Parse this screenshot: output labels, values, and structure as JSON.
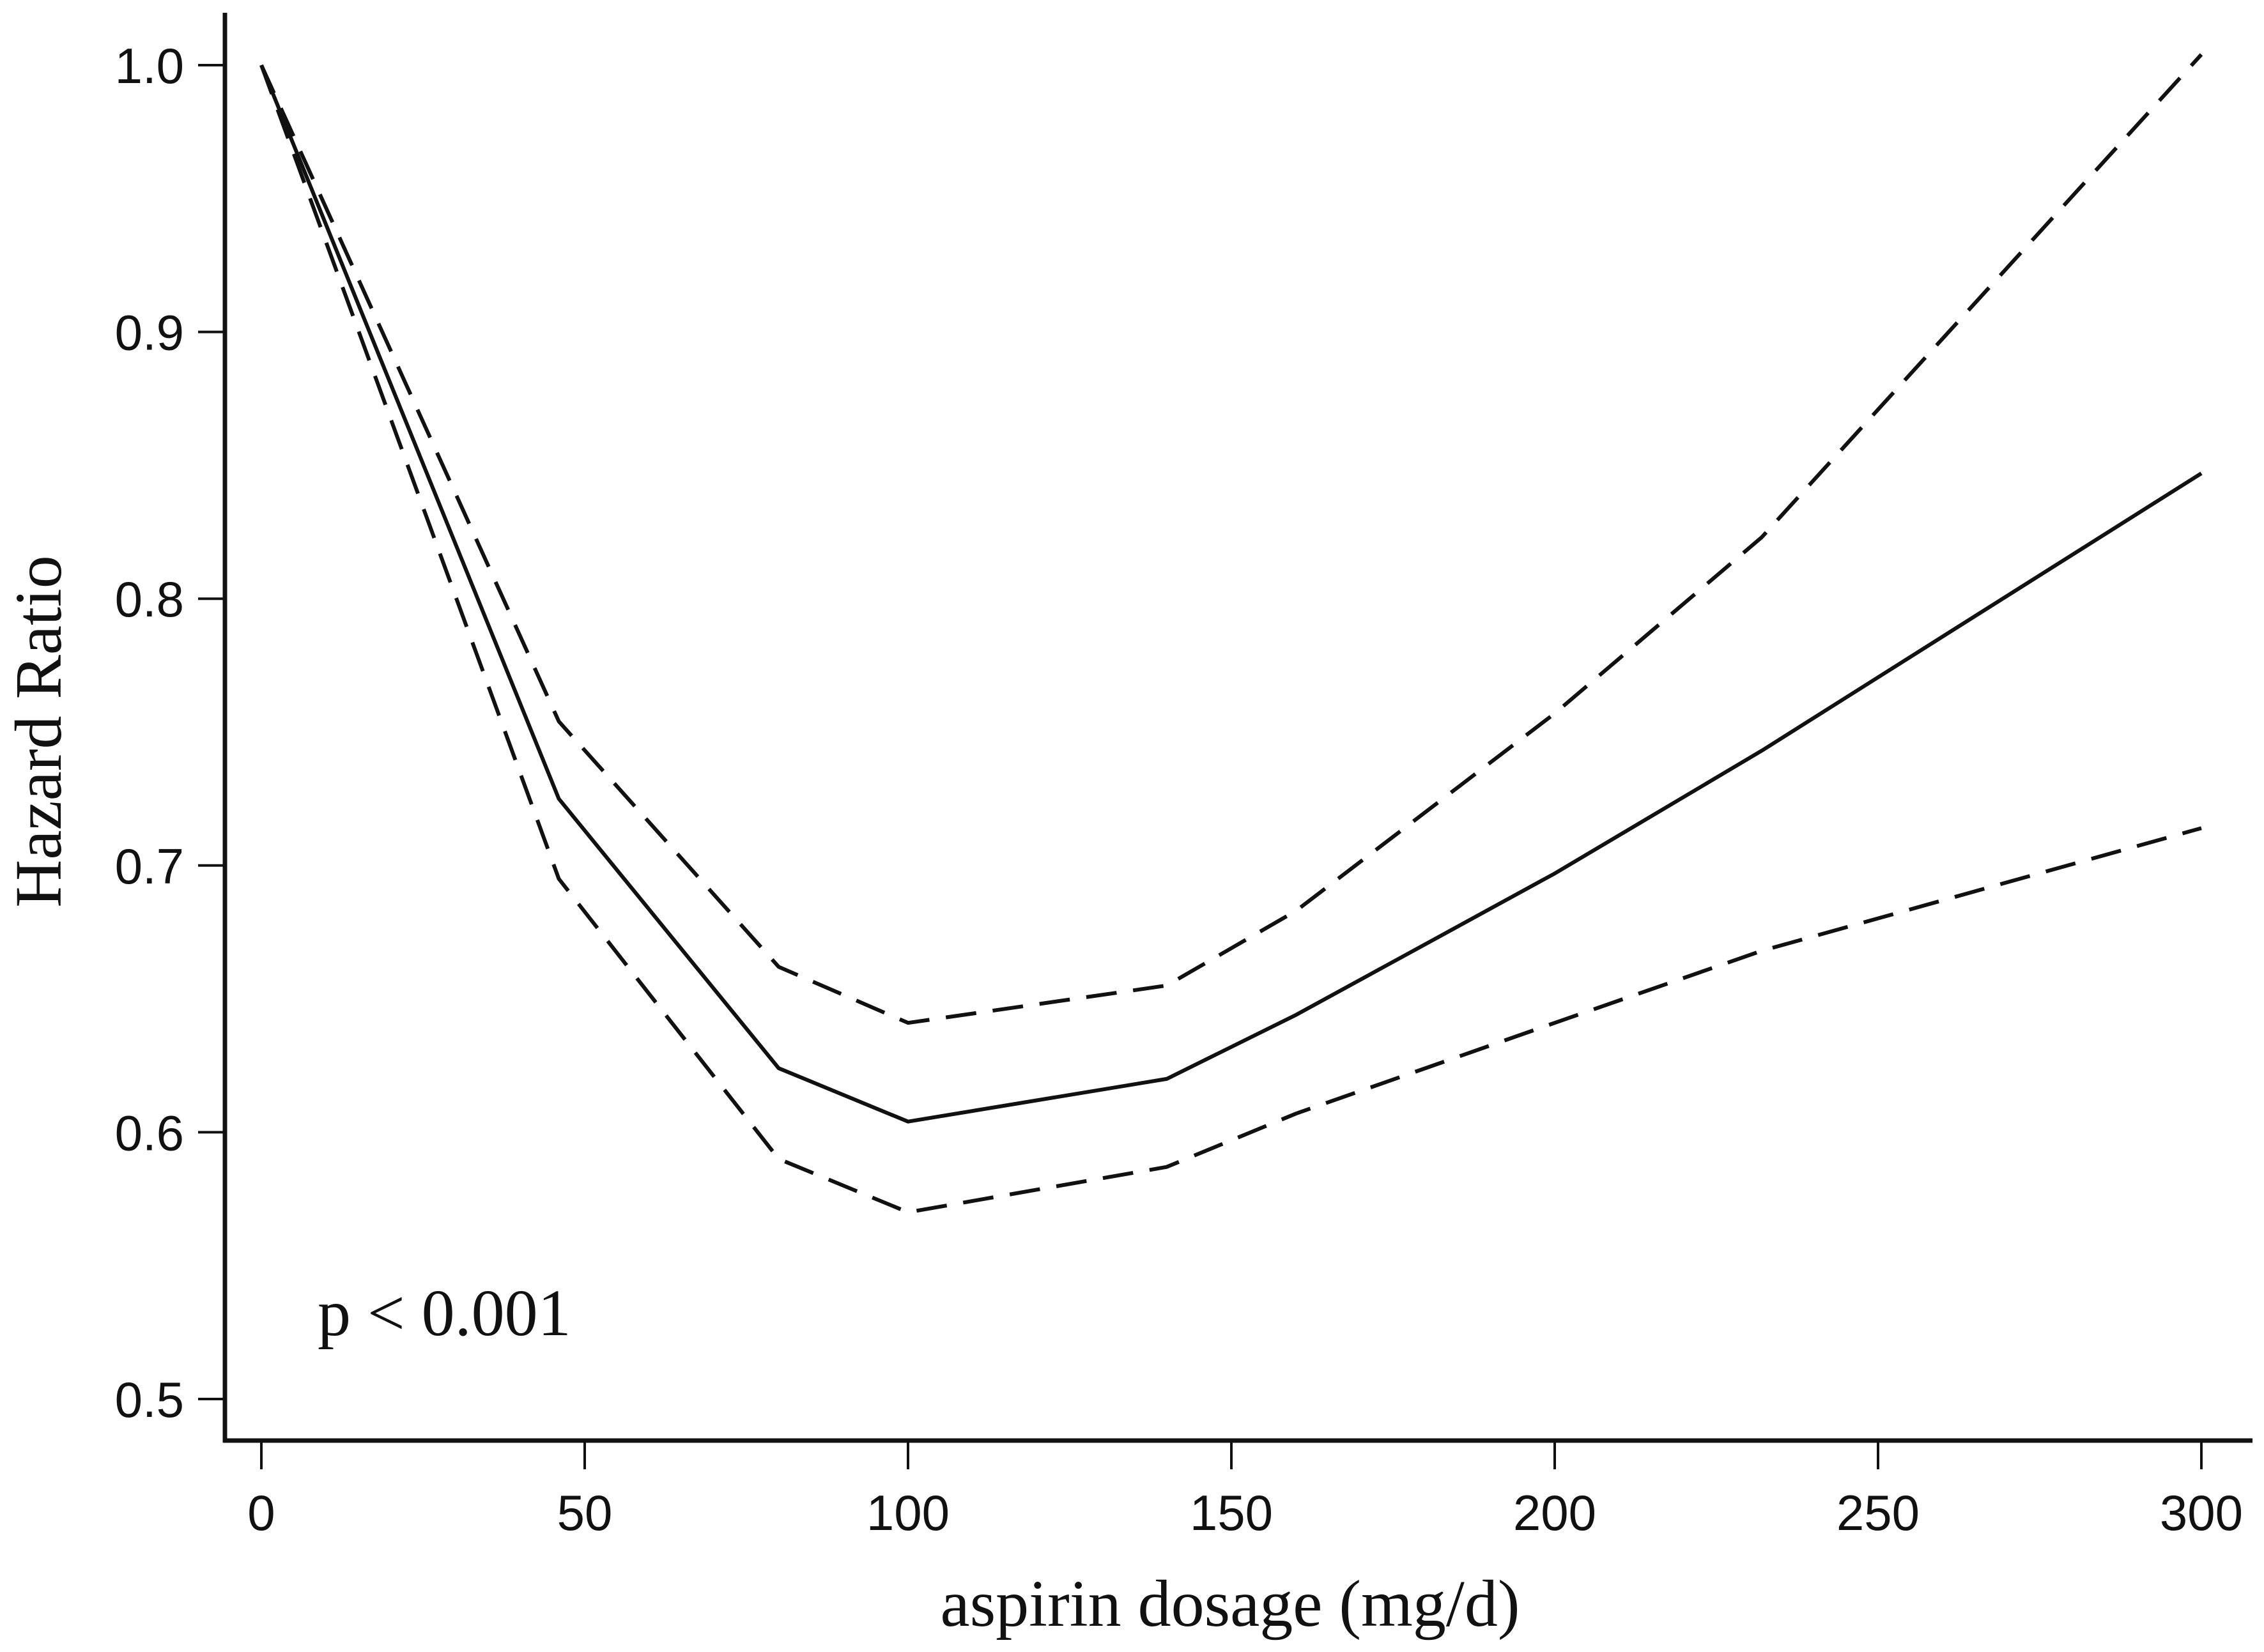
{
  "chart_data": {
    "type": "line",
    "title": "",
    "xlabel": "aspirin dosage (mg/d)",
    "ylabel": "Hazard Ratio",
    "xlim": [
      0,
      300
    ],
    "ylim": [
      0.5,
      1.0
    ],
    "xticks": [
      "0",
      "50",
      "100",
      "150",
      "200",
      "250",
      "300"
    ],
    "yticks": [
      "0.5",
      "0.6",
      "0.7",
      "0.8",
      "0.9",
      "1.0"
    ],
    "grid": false,
    "annotation": "p < 0.001",
    "line_color": "#111111",
    "series": [
      {
        "style": "solid",
        "x": [
          0,
          46,
          80,
          100,
          140,
          160,
          200,
          232,
          300
        ],
        "y": [
          1.0,
          0.725,
          0.624,
          0.604,
          0.62,
          0.644,
          0.697,
          0.743,
          0.847
        ]
      },
      {
        "style": "dashed",
        "x": [
          0,
          46,
          80,
          100,
          140,
          160,
          200,
          232,
          300
        ],
        "y": [
          1.0,
          0.754,
          0.662,
          0.641,
          0.655,
          0.683,
          0.757,
          0.823,
          1.004
        ]
      },
      {
        "style": "dashed",
        "x": [
          0,
          46,
          80,
          100,
          140,
          160,
          200,
          232,
          300
        ],
        "y": [
          1.0,
          0.695,
          0.59,
          0.57,
          0.587,
          0.607,
          0.641,
          0.668,
          0.714
        ]
      }
    ]
  }
}
